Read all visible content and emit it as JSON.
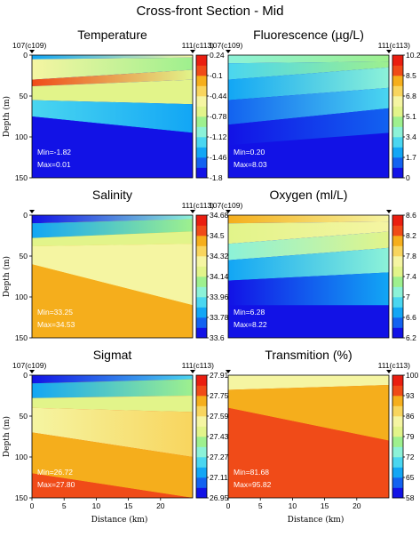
{
  "title": "Cross-front Section - Mid",
  "colors": {
    "palette": [
      "#1212e6",
      "#1262f0",
      "#12a6f5",
      "#4ad6f0",
      "#8cf2d8",
      "#9ef08e",
      "#e2f48a",
      "#f5f5a2",
      "#f8d55e",
      "#f5ae1c",
      "#f04b18",
      "#ea1e10"
    ]
  },
  "chart_data": [
    {
      "type": "heatmap",
      "title": "Temperature",
      "station_left": "107(c109)",
      "station_right": "111(c113)",
      "ylabel": "Depth (m)",
      "xlabel": "",
      "y_ticks": [
        "0",
        "50",
        "100",
        "150"
      ],
      "x_ticks": [],
      "colorbar_ticks": [
        "0.24",
        "-0.1",
        "-0.44",
        "-0.78",
        "-1.12",
        "-1.46",
        "-1.8"
      ],
      "min_label": "Min=-1.82",
      "max_label": "Max=0.01",
      "x_range_km": [
        0,
        25
      ],
      "depth_range_m": [
        0,
        150
      ],
      "value_range": [
        -1.8,
        0.24
      ],
      "interfaces": [
        {
          "depth_at_x0": 5,
          "depth_at_x25": 3,
          "levels": [
            2,
            7
          ]
        },
        {
          "depth_at_x0": 30,
          "depth_at_x25": 18,
          "levels": [
            7,
            5
          ]
        },
        {
          "depth_at_x0": 38,
          "depth_at_x25": 30,
          "levels": [
            10,
            6
          ]
        },
        {
          "depth_at_x0": 55,
          "depth_at_x25": 60,
          "levels": [
            6,
            6
          ]
        },
        {
          "depth_at_x0": 75,
          "depth_at_x25": 95,
          "levels": [
            3,
            2
          ]
        },
        {
          "depth_at_x0": 110,
          "depth_at_x25": 100,
          "levels": [
            0,
            0
          ]
        }
      ]
    },
    {
      "type": "heatmap",
      "title": "Fluorescence (µg/L)",
      "station_left": "107(c109)",
      "station_right": "111(c113)",
      "ylabel": "",
      "xlabel": "",
      "y_ticks": [],
      "x_ticks": [],
      "colorbar_ticks": [
        "10.2",
        "8.5",
        "6.8",
        "5.1",
        "3.4",
        "1.7",
        "0"
      ],
      "min_label": "Min=0.20",
      "max_label": "Max=8.03",
      "x_range_km": [
        0,
        25
      ],
      "depth_range_m": [
        0,
        150
      ],
      "value_range": [
        0,
        10.2
      ],
      "interfaces": [
        {
          "depth_at_x0": 10,
          "depth_at_x25": 8,
          "levels": [
            4,
            5
          ]
        },
        {
          "depth_at_x0": 30,
          "depth_at_x25": 15,
          "levels": [
            3,
            5
          ]
        },
        {
          "depth_at_x0": 55,
          "depth_at_x25": 40,
          "levels": [
            2,
            4
          ]
        },
        {
          "depth_at_x0": 85,
          "depth_at_x25": 65,
          "levels": [
            1,
            3
          ]
        },
        {
          "depth_at_x0": 110,
          "depth_at_x25": 95,
          "levels": [
            0,
            1
          ]
        }
      ]
    },
    {
      "type": "heatmap",
      "title": "Salinity",
      "station_left": "",
      "station_right": "111(c113)",
      "ylabel": "Depth (m)",
      "xlabel": "",
      "y_ticks": [
        "0",
        "50",
        "100",
        "150"
      ],
      "x_ticks": [],
      "colorbar_ticks": [
        "34.68",
        "34.5",
        "34.32",
        "34.14",
        "33.96",
        "33.78",
        "33.6"
      ],
      "min_label": "Min=33.25",
      "max_label": "Max=34.53",
      "x_range_km": [
        0,
        25
      ],
      "depth_range_m": [
        0,
        150
      ],
      "value_range": [
        33.6,
        34.68
      ],
      "interfaces": [
        {
          "depth_at_x0": 10,
          "depth_at_x25": 5,
          "levels": [
            0,
            4
          ]
        },
        {
          "depth_at_x0": 28,
          "depth_at_x25": 20,
          "levels": [
            2,
            5
          ]
        },
        {
          "depth_at_x0": 38,
          "depth_at_x25": 35,
          "levels": [
            6,
            6
          ]
        },
        {
          "depth_at_x0": 60,
          "depth_at_x25": 110,
          "levels": [
            7,
            7
          ]
        },
        {
          "depth_at_x0": 150,
          "depth_at_x25": 150,
          "levels": [
            9,
            9
          ]
        }
      ]
    },
    {
      "type": "heatmap",
      "title": "Oxygen (ml/L)",
      "station_left": "107(c109)",
      "station_right": "",
      "ylabel": "",
      "xlabel": "",
      "y_ticks": [],
      "x_ticks": [],
      "colorbar_ticks": [
        "8.6",
        "8.2",
        "7.8",
        "7.4",
        "7",
        "6.6",
        "6.2"
      ],
      "min_label": "Min=6.28",
      "max_label": "Max=8.22",
      "x_range_km": [
        0,
        25
      ],
      "depth_range_m": [
        0,
        150
      ],
      "value_range": [
        6.2,
        8.6
      ],
      "interfaces": [
        {
          "depth_at_x0": 10,
          "depth_at_x25": 8,
          "levels": [
            9,
            7
          ]
        },
        {
          "depth_at_x0": 35,
          "depth_at_x25": 20,
          "levels": [
            6,
            7
          ]
        },
        {
          "depth_at_x0": 55,
          "depth_at_x25": 40,
          "levels": [
            4,
            6
          ]
        },
        {
          "depth_at_x0": 80,
          "depth_at_x25": 70,
          "levels": [
            2,
            4
          ]
        },
        {
          "depth_at_x0": 110,
          "depth_at_x25": 110,
          "levels": [
            0,
            2
          ]
        }
      ]
    },
    {
      "type": "heatmap",
      "title": "Sigmat",
      "station_left": "107(c109)",
      "station_right": "111(c113)",
      "ylabel": "Depth (m)",
      "xlabel": "Distance (km)",
      "y_ticks": [
        "0",
        "50",
        "100",
        "150"
      ],
      "x_ticks": [
        "0",
        "5",
        "10",
        "15",
        "20"
      ],
      "colorbar_ticks": [
        "27.91",
        "27.75",
        "27.59",
        "27.43",
        "27.27",
        "27.11",
        "26.95"
      ],
      "min_label": "Min=26.72",
      "max_label": "Max=27.80",
      "x_range_km": [
        0,
        25
      ],
      "depth_range_m": [
        0,
        150
      ],
      "value_range": [
        26.95,
        27.91
      ],
      "interfaces": [
        {
          "depth_at_x0": 10,
          "depth_at_x25": 5,
          "levels": [
            0,
            3
          ]
        },
        {
          "depth_at_x0": 28,
          "depth_at_x25": 25,
          "levels": [
            2,
            5
          ]
        },
        {
          "depth_at_x0": 40,
          "depth_at_x25": 45,
          "levels": [
            6,
            6
          ]
        },
        {
          "depth_at_x0": 70,
          "depth_at_x25": 100,
          "levels": [
            7,
            8
          ]
        },
        {
          "depth_at_x0": 120,
          "depth_at_x25": 150,
          "levels": [
            9,
            9
          ]
        },
        {
          "depth_at_x0": 150,
          "depth_at_x25": 150,
          "levels": [
            10,
            10
          ]
        }
      ]
    },
    {
      "type": "heatmap",
      "title": "Transmition (%)",
      "station_left": "",
      "station_right": "111(c113)",
      "ylabel": "",
      "xlabel": "Distance (km)",
      "y_ticks": [],
      "x_ticks": [
        "0",
        "5",
        "10",
        "15",
        "20"
      ],
      "colorbar_ticks": [
        "100",
        "93",
        "86",
        "79",
        "72",
        "65",
        "58"
      ],
      "min_label": "Min=81.68",
      "max_label": "Max=95.82",
      "x_range_km": [
        0,
        25
      ],
      "depth_range_m": [
        0,
        150
      ],
      "value_range": [
        58,
        100
      ],
      "interfaces": [
        {
          "depth_at_x0": 18,
          "depth_at_x25": 12,
          "levels": [
            7,
            7
          ]
        },
        {
          "depth_at_x0": 40,
          "depth_at_x25": 80,
          "levels": [
            9,
            9
          ]
        },
        {
          "depth_at_x0": 150,
          "depth_at_x25": 150,
          "levels": [
            10,
            10
          ]
        }
      ]
    }
  ]
}
